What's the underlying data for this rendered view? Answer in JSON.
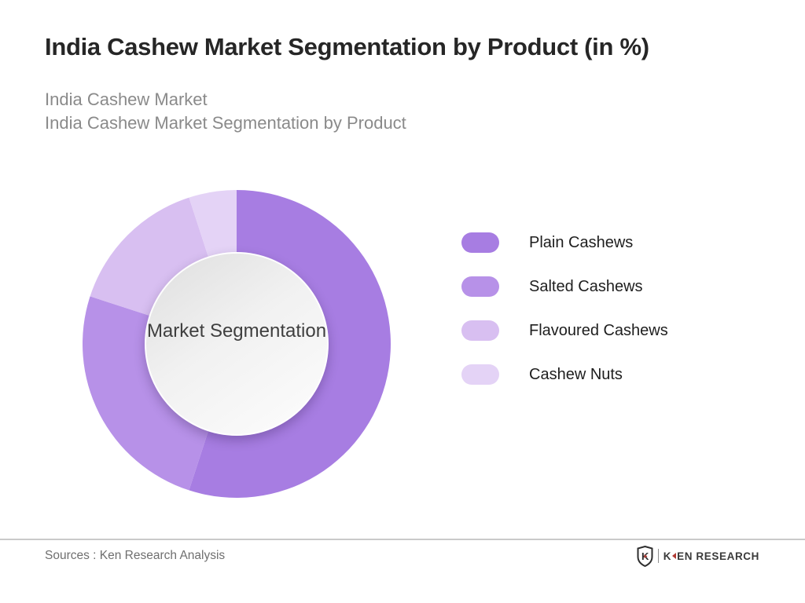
{
  "page": {
    "title": "India Cashew Market Segmentation by Product (in %)",
    "subtitle_line1": "India Cashew Market",
    "subtitle_line2": "India Cashew Market Segmentation by Product"
  },
  "chart_data": {
    "type": "pie",
    "subtype": "donut",
    "title": "India Cashew Market Segmentation by Product (in %)",
    "unit": "%",
    "center_label": "Market Segmentation",
    "start_angle_deg": 0,
    "direction": "clockwise",
    "legend_position": "right",
    "categories": [
      "Plain Cashews",
      "Salted Cashews",
      "Flavoured Cashews",
      "Cashew Nuts"
    ],
    "values": [
      55,
      25,
      15,
      5
    ],
    "colors": [
      "#a77de2",
      "#b791e8",
      "#d8bff1",
      "#e4d3f6"
    ]
  },
  "footer": {
    "sources": "Sources : Ken Research Analysis",
    "logo_monogram": "K",
    "brand_first_letter": "K",
    "brand_rest": "EN RESEARCH"
  },
  "theme": {
    "accent_red": "#b03a34",
    "divider_gray": "#cacaca",
    "title_color": "#262626",
    "subtitle_color": "#8a8a8a"
  }
}
